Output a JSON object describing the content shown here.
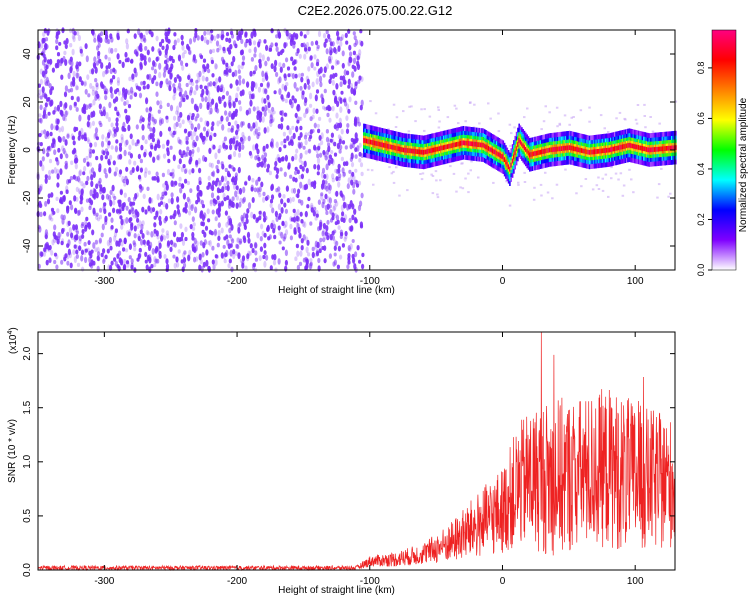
{
  "title": "C2E2.2026.075.00.22.G12",
  "chart_data": [
    {
      "type": "heatmap",
      "xlabel": "Height of straight line (km)",
      "ylabel": "Frequency (Hz)",
      "xlim": [
        -350,
        130
      ],
      "ylim": [
        -50,
        50
      ],
      "xticks": [
        -300,
        -200,
        -100,
        0,
        100
      ],
      "yticks": [
        -40,
        -20,
        0,
        20,
        40
      ],
      "noise_region_x": [
        -350,
        -105
      ],
      "noise_color": "#7b2ff7",
      "signal_x": [
        -105,
        -90,
        -75,
        -60,
        -45,
        -30,
        -15,
        0,
        5,
        12,
        20,
        35,
        50,
        65,
        80,
        95,
        110,
        130
      ],
      "signal_freq": [
        4,
        2,
        0,
        -1,
        1,
        3,
        2,
        -3,
        -8,
        4,
        -2,
        0,
        1,
        -1,
        0,
        2,
        0,
        1
      ],
      "colorbar": {
        "label": "Normalized spectral amplitude",
        "range": [
          0,
          0.95
        ],
        "ticks": [
          0.0,
          0.2,
          0.4,
          0.6,
          0.8
        ],
        "tick_labels": [
          "0.0",
          "0.2",
          "0.4",
          "0.6",
          "0.8"
        ],
        "colors": [
          "#ffffff",
          "#7f00ff",
          "#0000ff",
          "#00ffff",
          "#00ff00",
          "#ffff00",
          "#ff8000",
          "#ff0000",
          "#ff0080"
        ]
      }
    },
    {
      "type": "line",
      "xlabel": "Height of straight line (km)",
      "ylabel": "SNR (10 * v/v)",
      "y_scale_label": "(x10",
      "y_scale_exponent": "4",
      "y_scale_close": ")",
      "xlim": [
        -350,
        130
      ],
      "ylim": [
        0,
        2.2
      ],
      "xticks": [
        -300,
        -200,
        -100,
        0,
        100
      ],
      "yticks": [
        0.0,
        0.5,
        1.0,
        1.5,
        2.0
      ],
      "ytick_labels": [
        "0.0",
        "0.5",
        "1.0",
        "1.5",
        "2.0"
      ],
      "color": "#ee2222",
      "envelope_x": [
        -350,
        -110,
        -100,
        -80,
        -60,
        -40,
        -20,
        0,
        10,
        20,
        40,
        60,
        80,
        100,
        130
      ],
      "envelope_mean": [
        0.02,
        0.02,
        0.08,
        0.1,
        0.15,
        0.25,
        0.4,
        0.55,
        0.75,
        0.85,
        0.85,
        0.9,
        0.95,
        0.85,
        0.8
      ],
      "envelope_spread": [
        0.02,
        0.02,
        0.05,
        0.07,
        0.1,
        0.18,
        0.3,
        0.4,
        0.55,
        0.65,
        0.75,
        0.7,
        0.75,
        0.7,
        0.6
      ]
    }
  ]
}
